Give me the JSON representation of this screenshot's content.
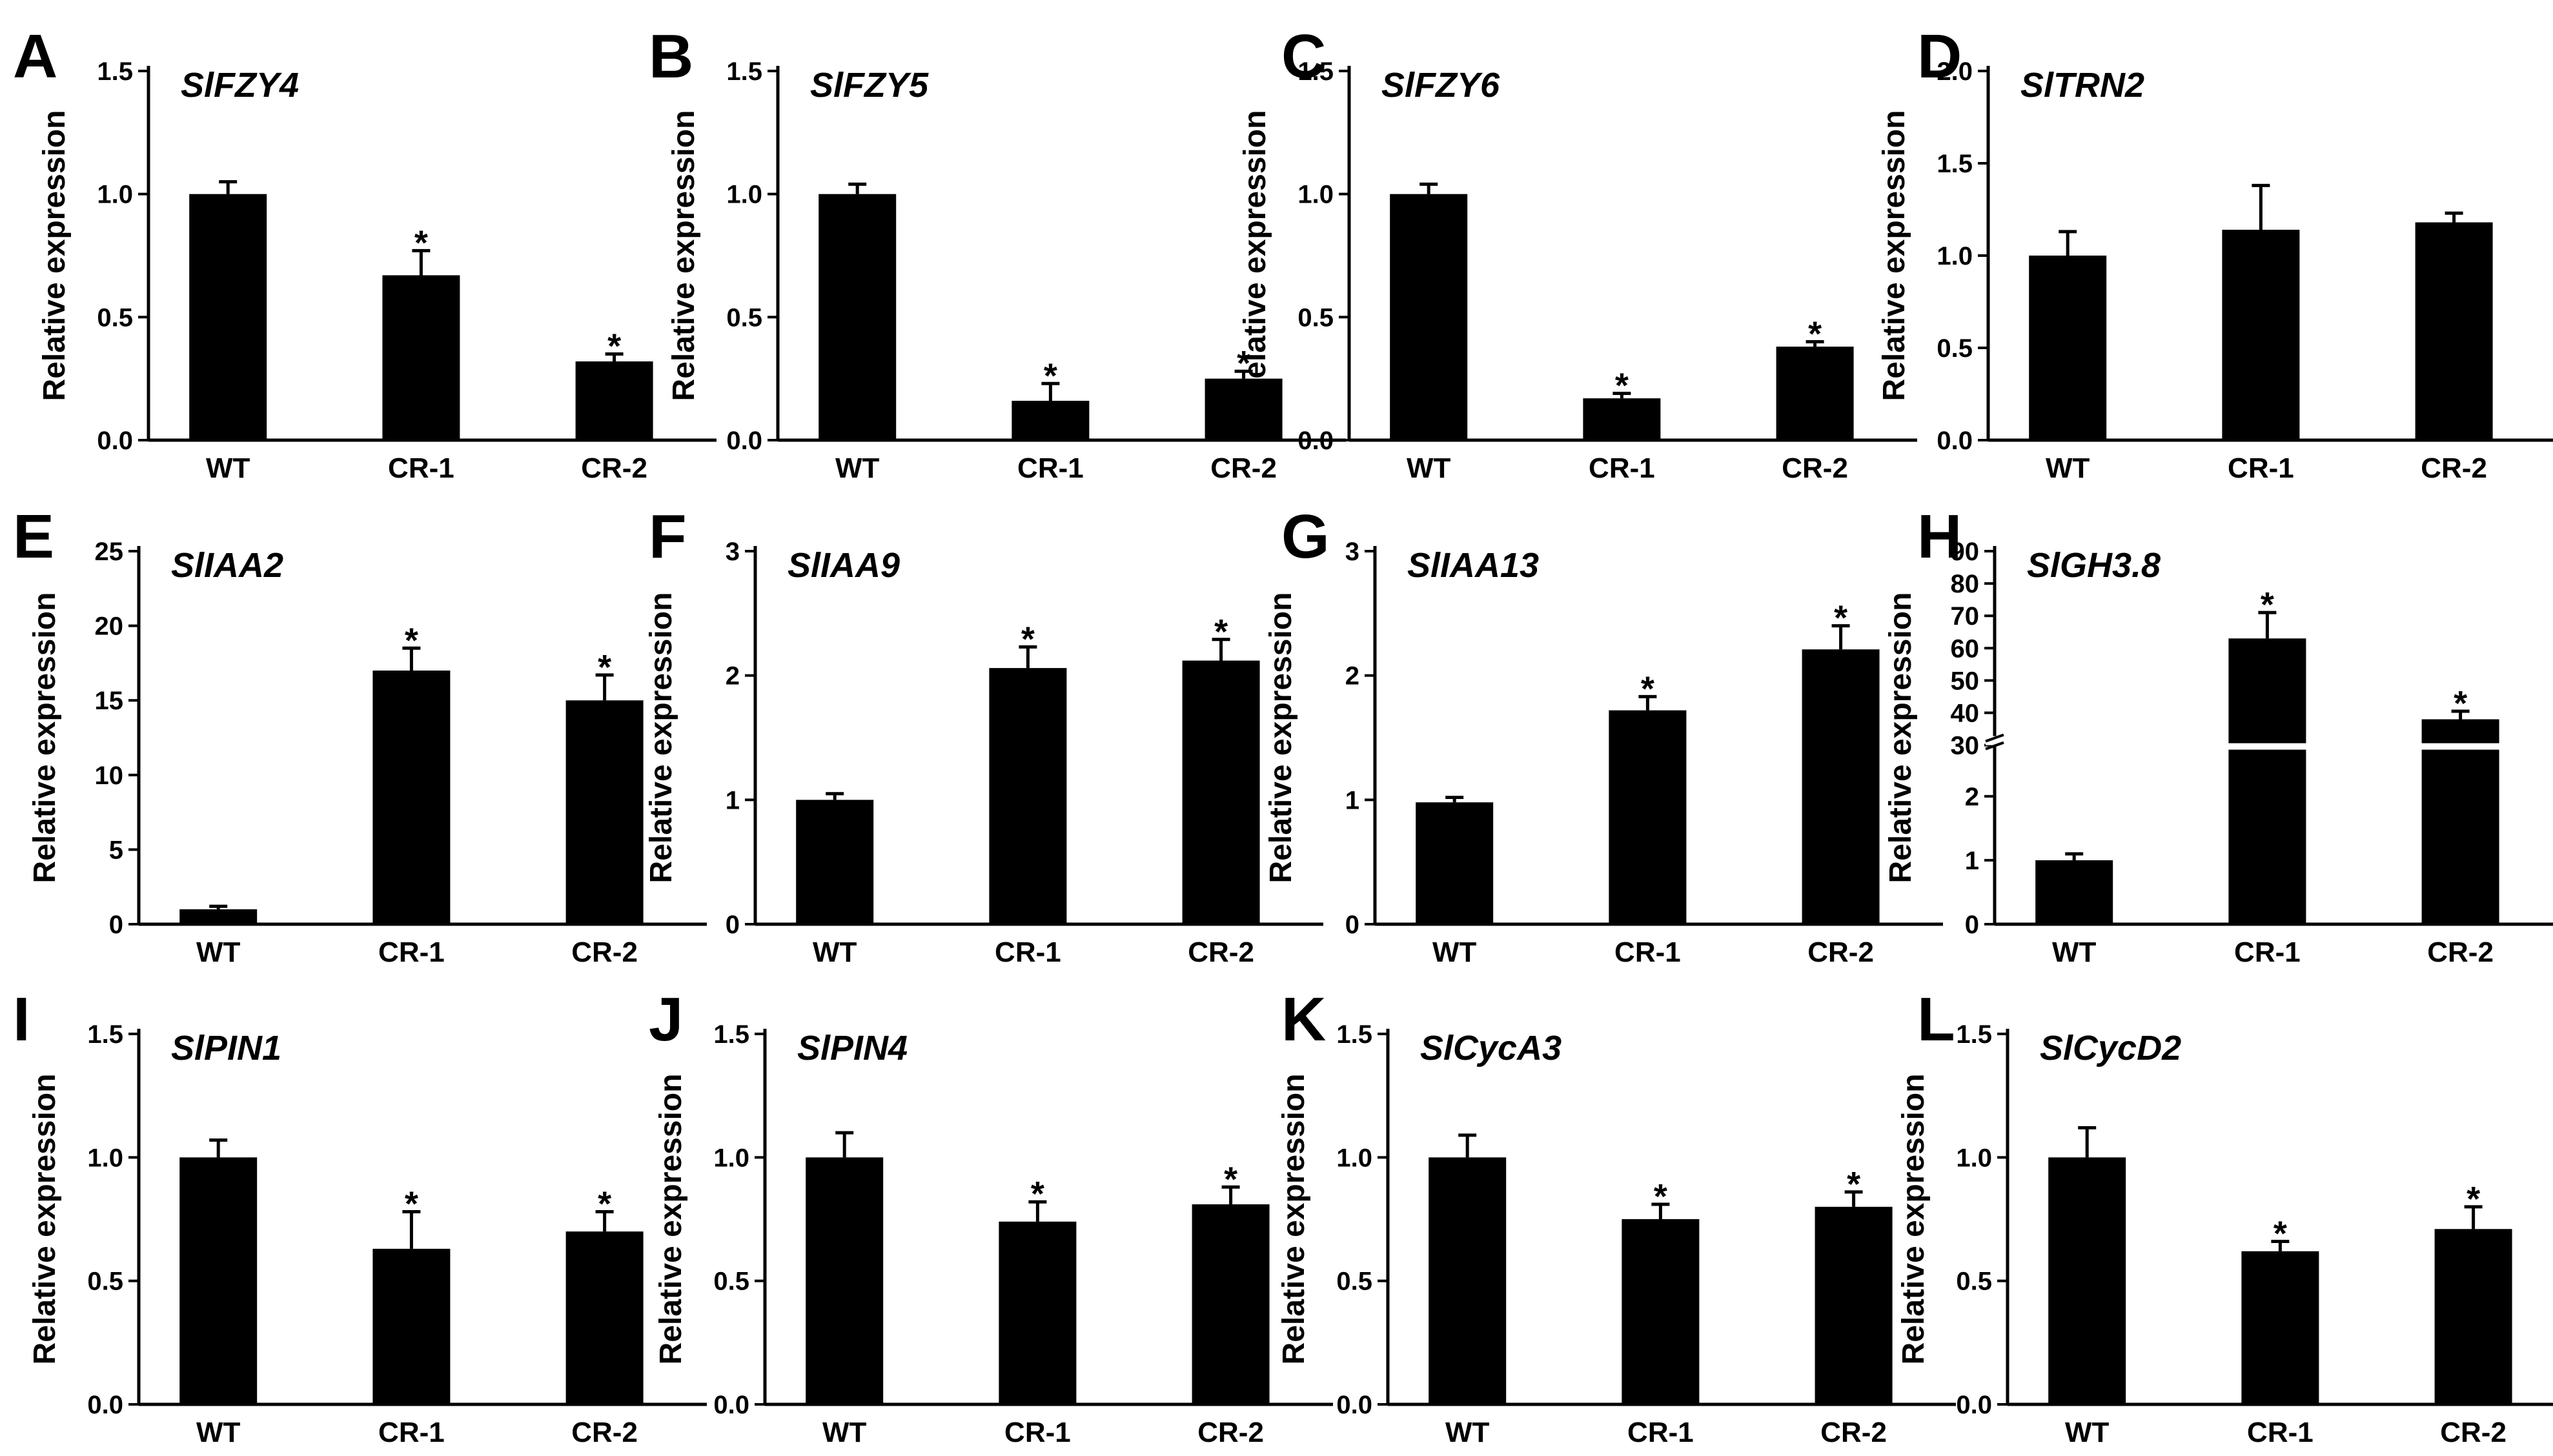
{
  "figure": {
    "ylabel": "Relative expression",
    "bar_color": "#000000",
    "break_color": "#ffffff"
  },
  "chart_data": [
    {
      "panel": "A",
      "type": "bar",
      "title": "SlFZY4",
      "ylabel": "Relative expression",
      "categories": [
        "WT",
        "CR-1",
        "CR-2"
      ],
      "values": [
        1.0,
        0.67,
        0.32
      ],
      "errors": [
        0.05,
        0.1,
        0.03
      ],
      "significant": [
        "",
        "*",
        "*"
      ],
      "ylim": [
        0,
        1.5
      ],
      "yticks": [
        "0.0",
        "0.5",
        "1.0",
        "1.5"
      ]
    },
    {
      "panel": "B",
      "type": "bar",
      "title": "SlFZY5",
      "ylabel": "Relative expression",
      "categories": [
        "WT",
        "CR-1",
        "CR-2"
      ],
      "values": [
        1.0,
        0.16,
        0.25
      ],
      "errors": [
        0.04,
        0.07,
        0.03
      ],
      "significant": [
        "",
        "*",
        "*"
      ],
      "ylim": [
        0,
        1.5
      ],
      "yticks": [
        "0.0",
        "0.5",
        "1.0",
        "1.5"
      ]
    },
    {
      "panel": "C",
      "type": "bar",
      "title": "SlFZY6",
      "ylabel": "Relative expression",
      "categories": [
        "WT",
        "CR-1",
        "CR-2"
      ],
      "values": [
        1.0,
        0.17,
        0.38
      ],
      "errors": [
        0.04,
        0.02,
        0.02
      ],
      "significant": [
        "",
        "*",
        "*"
      ],
      "ylim": [
        0,
        1.5
      ],
      "yticks": [
        "0.0",
        "0.5",
        "1.0",
        "1.5"
      ]
    },
    {
      "panel": "D",
      "type": "bar",
      "title": "SlTRN2",
      "ylabel": "Relative expression",
      "categories": [
        "WT",
        "CR-1",
        "CR-2"
      ],
      "values": [
        1.0,
        1.14,
        1.18
      ],
      "errors": [
        0.13,
        0.24,
        0.05
      ],
      "significant": [
        "",
        "",
        ""
      ],
      "ylim": [
        0,
        2.0
      ],
      "yticks": [
        "0.0",
        "0.5",
        "1.0",
        "1.5",
        "2.0"
      ]
    },
    {
      "panel": "E",
      "type": "bar",
      "title": "SlIAA2",
      "ylabel": "Relative expression",
      "categories": [
        "WT",
        "CR-1",
        "CR-2"
      ],
      "values": [
        1.0,
        17.0,
        15.0
      ],
      "errors": [
        0.2,
        1.5,
        1.7
      ],
      "significant": [
        "",
        "*",
        "*"
      ],
      "ylim": [
        0,
        25
      ],
      "yticks": [
        "0",
        "5",
        "10",
        "15",
        "20",
        "25"
      ]
    },
    {
      "panel": "F",
      "type": "bar",
      "title": "SlIAA9",
      "ylabel": "Relative expression",
      "categories": [
        "WT",
        "CR-1",
        "CR-2"
      ],
      "values": [
        1.0,
        2.06,
        2.12
      ],
      "errors": [
        0.05,
        0.17,
        0.17
      ],
      "significant": [
        "",
        "*",
        "*"
      ],
      "ylim": [
        0,
        3
      ],
      "yticks": [
        "0",
        "1",
        "2",
        "3"
      ]
    },
    {
      "panel": "G",
      "type": "bar",
      "title": "SlIAA13",
      "ylabel": "Relative expression",
      "categories": [
        "WT",
        "CR-1",
        "CR-2"
      ],
      "values": [
        0.98,
        1.72,
        2.21
      ],
      "errors": [
        0.04,
        0.11,
        0.19
      ],
      "significant": [
        "",
        "*",
        "*"
      ],
      "ylim": [
        0,
        3
      ],
      "yticks": [
        "0",
        "1",
        "2",
        "3"
      ]
    },
    {
      "panel": "H",
      "type": "bar",
      "title": "SlGH3.8",
      "ylabel": "Relative expression",
      "categories": [
        "WT",
        "CR-1",
        "CR-2"
      ],
      "values": [
        1.0,
        63.0,
        38.0
      ],
      "errors": [
        0.1,
        8.0,
        2.5
      ],
      "significant": [
        "",
        "*",
        "*"
      ],
      "ylim": [
        0,
        90
      ],
      "axis_break": [
        2.8,
        30
      ],
      "yticks": [
        "0",
        "1",
        "2",
        "30",
        "40",
        "50",
        "60",
        "70",
        "80",
        "90"
      ]
    },
    {
      "panel": "I",
      "type": "bar",
      "title": "SlPIN1",
      "ylabel": "Relative expression",
      "categories": [
        "WT",
        "CR-1",
        "CR-2"
      ],
      "values": [
        1.0,
        0.63,
        0.7
      ],
      "errors": [
        0.07,
        0.15,
        0.08
      ],
      "significant": [
        "",
        "*",
        "*"
      ],
      "ylim": [
        0,
        1.5
      ],
      "yticks": [
        "0.0",
        "0.5",
        "1.0",
        "1.5"
      ]
    },
    {
      "panel": "J",
      "type": "bar",
      "title": "SlPIN4",
      "ylabel": "Relative expression",
      "categories": [
        "WT",
        "CR-1",
        "CR-2"
      ],
      "values": [
        1.0,
        0.74,
        0.81
      ],
      "errors": [
        0.1,
        0.08,
        0.07
      ],
      "significant": [
        "",
        "*",
        "*"
      ],
      "ylim": [
        0,
        1.5
      ],
      "yticks": [
        "0.0",
        "0.5",
        "1.0",
        "1.5"
      ]
    },
    {
      "panel": "K",
      "type": "bar",
      "title": "SlCycA3",
      "ylabel": "Relative expression",
      "categories": [
        "WT",
        "CR-1",
        "CR-2"
      ],
      "values": [
        1.0,
        0.75,
        0.8
      ],
      "errors": [
        0.09,
        0.06,
        0.06
      ],
      "significant": [
        "",
        "*",
        "*"
      ],
      "ylim": [
        0,
        1.5
      ],
      "yticks": [
        "0.0",
        "0.5",
        "1.0",
        "1.5"
      ]
    },
    {
      "panel": "L",
      "type": "bar",
      "title": "SlCycD2",
      "ylabel": "Relative expression",
      "categories": [
        "WT",
        "CR-1",
        "CR-2"
      ],
      "values": [
        1.0,
        0.62,
        0.71
      ],
      "errors": [
        0.12,
        0.04,
        0.09
      ],
      "significant": [
        "",
        "*",
        "*"
      ],
      "ylim": [
        0,
        1.5
      ],
      "yticks": [
        "0.0",
        "0.5",
        "1.0",
        "1.5"
      ]
    }
  ]
}
